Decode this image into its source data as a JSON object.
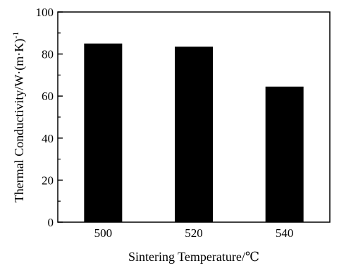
{
  "chart_data": {
    "type": "bar",
    "categories": [
      "500",
      "520",
      "540"
    ],
    "values": [
      85,
      83.5,
      64.5
    ],
    "xlabel": "Sintering Temperature/℃",
    "ylabel": "Thermal Conductivity/W·(m·K)",
    "ylabel_superscript": "-1",
    "ylim": [
      0,
      100
    ],
    "yticks": [
      "0",
      "20",
      "40",
      "60",
      "80",
      "100"
    ],
    "grid": false,
    "bar_color": "#000000"
  }
}
